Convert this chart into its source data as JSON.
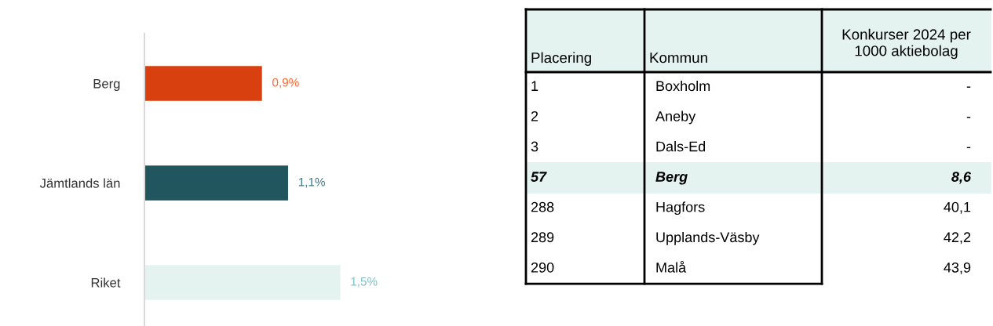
{
  "chart_data": [
    {
      "type": "bar",
      "orientation": "horizontal",
      "categories": [
        "Berg",
        "Jämtlands län",
        "Riket"
      ],
      "values": [
        0.9,
        1.1,
        1.5
      ],
      "colors": [
        "#d84010",
        "#21565f",
        "#e4f3f0"
      ],
      "value_labels": [
        "0,9%",
        "1,1%",
        "1,5%"
      ]
    },
    {
      "type": "other",
      "annotations": [
        "Placering",
        "Kommun",
        "Konkurser 2024 per\n1000 aktiebolag",
        "1",
        "Boxholm",
        "-",
        "2",
        "Aneby",
        "-",
        "3",
        "Dals-Ed",
        "-",
        "57",
        "Berg",
        "8,6",
        "288",
        "Hagfors",
        "40,1",
        "289",
        "Upplands-Väsby",
        "42,2",
        "290",
        "Malå",
        "43,9"
      ]
    }
  ]
}
